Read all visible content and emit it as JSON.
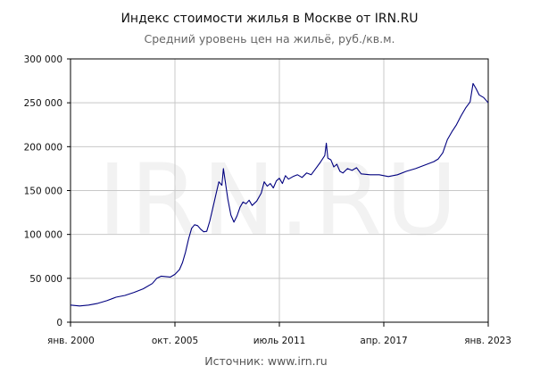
{
  "title": "Индекс стоимости жилья в Москве от IRN.RU",
  "subtitle": "Средний уровень цен на жильё, руб./кв.м.",
  "source": "Источник: www.irn.ru",
  "watermark": "IRN.RU",
  "chart_data": {
    "type": "line",
    "title": "Индекс стоимости жилья в Москве от IRN.RU",
    "subtitle": "Средний уровень цен на жильё, руб./кв.м.",
    "xlabel": "",
    "ylabel": "",
    "xlim": [
      "2000-01",
      "2023-01"
    ],
    "ylim": [
      0,
      300000
    ],
    "grid": true,
    "line_color": "#00007f",
    "x_ticks": [
      {
        "date": "2000-01",
        "label": "янв. 2000"
      },
      {
        "date": "2005-10",
        "label": "окт. 2005"
      },
      {
        "date": "2011-07",
        "label": "июль 2011"
      },
      {
        "date": "2017-04",
        "label": "апр. 2017"
      },
      {
        "date": "2023-01",
        "label": "янв. 2023"
      }
    ],
    "y_ticks": [
      {
        "value": 0,
        "label": "0"
      },
      {
        "value": 50000,
        "label": "50 000"
      },
      {
        "value": 100000,
        "label": "100 000"
      },
      {
        "value": 150000,
        "label": "150 000"
      },
      {
        "value": 200000,
        "label": "200 000"
      },
      {
        "value": 250000,
        "label": "250 000"
      },
      {
        "value": 300000,
        "label": "300 000"
      }
    ],
    "series": [
      {
        "values": [
          [
            "2000-01",
            19500
          ],
          [
            "2000-07",
            18500
          ],
          [
            "2001-01",
            19500
          ],
          [
            "2001-07",
            21500
          ],
          [
            "2002-01",
            24500
          ],
          [
            "2002-07",
            28500
          ],
          [
            "2003-01",
            30500
          ],
          [
            "2003-07",
            34000
          ],
          [
            "2004-01",
            38000
          ],
          [
            "2004-07",
            44000
          ],
          [
            "2004-10",
            50000
          ],
          [
            "2005-01",
            52500
          ],
          [
            "2005-04",
            52000
          ],
          [
            "2005-07",
            51500
          ],
          [
            "2005-10",
            54500
          ],
          [
            "2006-01",
            60000
          ],
          [
            "2006-03",
            68000
          ],
          [
            "2006-05",
            80000
          ],
          [
            "2006-07",
            95000
          ],
          [
            "2006-09",
            107000
          ],
          [
            "2006-11",
            111000
          ],
          [
            "2007-01",
            110000
          ],
          [
            "2007-03",
            106000
          ],
          [
            "2007-05",
            103000
          ],
          [
            "2007-07",
            103500
          ],
          [
            "2007-09",
            115000
          ],
          [
            "2007-11",
            130000
          ],
          [
            "2008-01",
            145000
          ],
          [
            "2008-03",
            160000
          ],
          [
            "2008-05",
            156000
          ],
          [
            "2008-06",
            175000
          ],
          [
            "2008-07",
            163000
          ],
          [
            "2008-09",
            140000
          ],
          [
            "2008-11",
            122000
          ],
          [
            "2009-01",
            114000
          ],
          [
            "2009-03",
            121000
          ],
          [
            "2009-05",
            131000
          ],
          [
            "2009-07",
            137000
          ],
          [
            "2009-09",
            135000
          ],
          [
            "2009-11",
            139000
          ],
          [
            "2010-01",
            133000
          ],
          [
            "2010-04",
            138000
          ],
          [
            "2010-07",
            147000
          ],
          [
            "2010-09",
            160000
          ],
          [
            "2010-11",
            155000
          ],
          [
            "2011-01",
            158000
          ],
          [
            "2011-03",
            153000
          ],
          [
            "2011-05",
            161000
          ],
          [
            "2011-07",
            164000
          ],
          [
            "2011-09",
            158000
          ],
          [
            "2011-11",
            167000
          ],
          [
            "2012-01",
            163000
          ],
          [
            "2012-04",
            166000
          ],
          [
            "2012-07",
            168000
          ],
          [
            "2012-10",
            165000
          ],
          [
            "2013-01",
            170000
          ],
          [
            "2013-04",
            168000
          ],
          [
            "2013-07",
            175000
          ],
          [
            "2013-10",
            182000
          ],
          [
            "2014-01",
            190000
          ],
          [
            "2014-02",
            204000
          ],
          [
            "2014-03",
            187000
          ],
          [
            "2014-05",
            185000
          ],
          [
            "2014-07",
            177000
          ],
          [
            "2014-09",
            180000
          ],
          [
            "2014-11",
            172000
          ],
          [
            "2015-01",
            170000
          ],
          [
            "2015-04",
            175000
          ],
          [
            "2015-07",
            173000
          ],
          [
            "2015-10",
            176000
          ],
          [
            "2016-01",
            169000
          ],
          [
            "2016-07",
            168000
          ],
          [
            "2017-01",
            168000
          ],
          [
            "2017-07",
            166000
          ],
          [
            "2018-01",
            168000
          ],
          [
            "2018-07",
            172000
          ],
          [
            "2019-01",
            175000
          ],
          [
            "2019-07",
            179000
          ],
          [
            "2020-01",
            183000
          ],
          [
            "2020-04",
            186000
          ],
          [
            "2020-07",
            193000
          ],
          [
            "2020-10",
            208000
          ],
          [
            "2021-01",
            217000
          ],
          [
            "2021-04",
            225000
          ],
          [
            "2021-07",
            235000
          ],
          [
            "2021-10",
            244000
          ],
          [
            "2022-01",
            251000
          ],
          [
            "2022-03",
            272000
          ],
          [
            "2022-05",
            266000
          ],
          [
            "2022-07",
            259000
          ],
          [
            "2022-10",
            256000
          ],
          [
            "2023-01",
            250000
          ]
        ]
      }
    ]
  }
}
